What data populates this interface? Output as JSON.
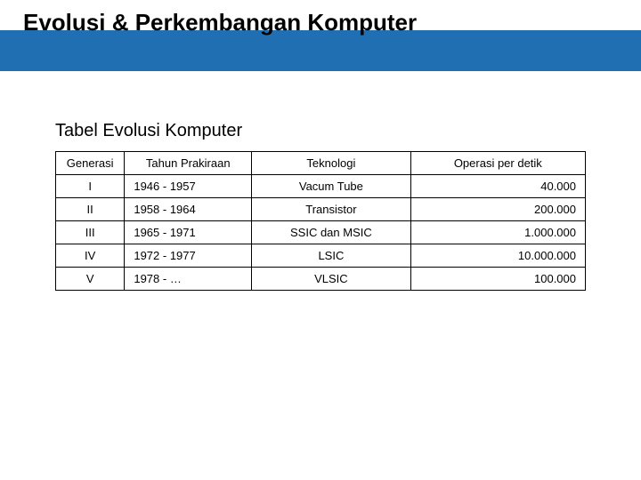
{
  "colors": {
    "accent": "#1f6fb2",
    "background": "#ffffff",
    "text": "#000000",
    "border": "#000000"
  },
  "header": {
    "title": "Evolusi & Perkembangan Komputer"
  },
  "subtitle": "Tabel Evolusi Komputer",
  "table": {
    "columns": [
      "Generasi",
      "Tahun Prakiraan",
      "Teknologi",
      "Operasi per detik"
    ],
    "col_align": [
      "center",
      "left",
      "center",
      "right"
    ],
    "rows": [
      [
        "I",
        "1946 - 1957",
        "Vacum Tube",
        "40.000"
      ],
      [
        "II",
        "1958 - 1964",
        "Transistor",
        "200.000"
      ],
      [
        "III",
        "1965 - 1971",
        "SSIC dan MSIC",
        "1.000.000"
      ],
      [
        "IV",
        "1972 - 1977",
        "LSIC",
        "10.000.000"
      ],
      [
        "V",
        "1978 - …",
        "VLSIC",
        "100.000"
      ]
    ]
  }
}
